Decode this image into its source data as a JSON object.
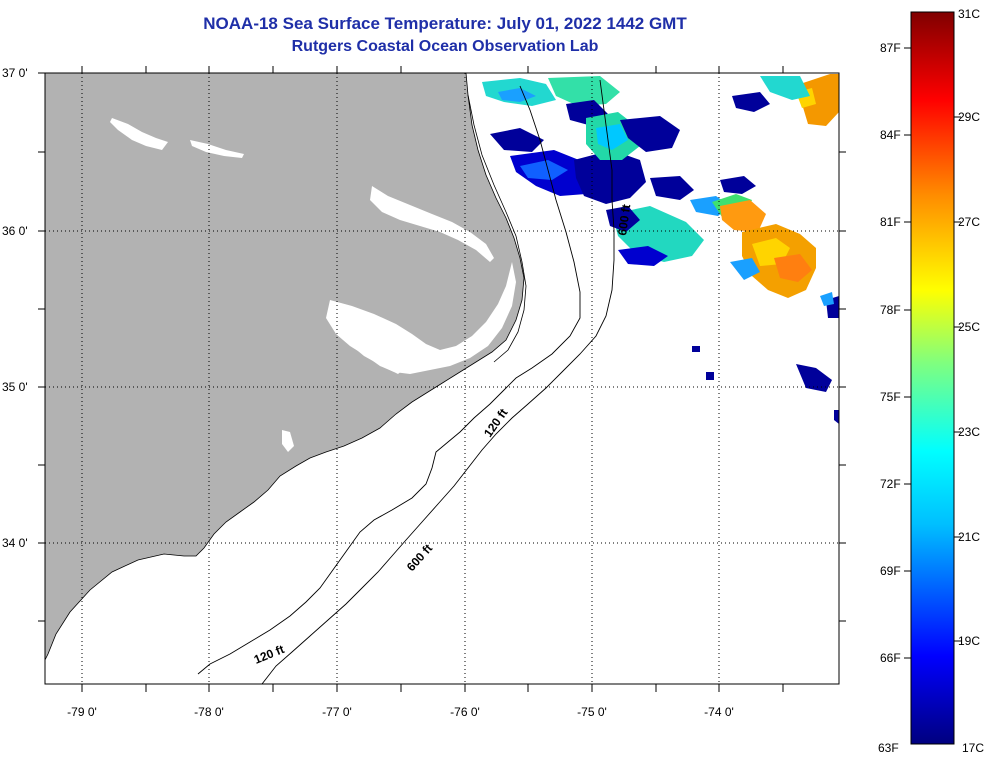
{
  "title": {
    "line1": "NOAA-18 Sea Surface Temperature:  July 01, 2022 1442 GMT",
    "line2": "Rutgers Coastal Ocean Observation Lab"
  },
  "map": {
    "lat_labels": [
      "37 0'",
      "36 0'",
      "35 0'",
      "34 0'"
    ],
    "lon_labels": [
      "-79 0'",
      "-78 0'",
      "-77 0'",
      "-76 0'",
      "-75 0'",
      "-74 0'"
    ],
    "contour_labels": [
      "600 ft",
      "120 ft",
      "600 ft",
      "120 ft"
    ],
    "colors": {
      "land": "#b2b2b2",
      "grid": "#000000"
    }
  },
  "colorbar": {
    "fahrenheit_labels": [
      "87F",
      "84F",
      "81F",
      "78F",
      "75F",
      "72F",
      "69F",
      "66F",
      "63F"
    ],
    "celsius_labels": [
      "31C",
      "29C",
      "27C",
      "25C",
      "23C",
      "21C",
      "19C",
      "17C"
    ],
    "colors": [
      "#00007f",
      "#0000ff",
      "#00bfff",
      "#00ffff",
      "#7fff7f",
      "#ffff00",
      "#ff8c00",
      "#ff0000",
      "#800000"
    ]
  }
}
